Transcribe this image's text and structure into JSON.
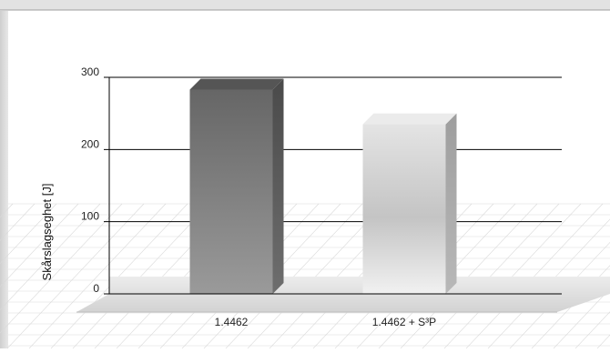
{
  "chart_data": {
    "type": "bar",
    "title": "",
    "xlabel": "",
    "ylabel": "Skårslagseghet [J]",
    "categories": [
      "1.4462",
      "1.4462 + S³P"
    ],
    "values": [
      283,
      235
    ],
    "ylim": [
      0,
      300
    ],
    "yticks": [
      0,
      100,
      200,
      300
    ],
    "grid": true,
    "legend": "none",
    "bar_colors": [
      "#7a7a7a",
      "#d6d6d6"
    ],
    "background_grid_color": "#d9d9d9",
    "floor_color": "#e3e3e3"
  }
}
